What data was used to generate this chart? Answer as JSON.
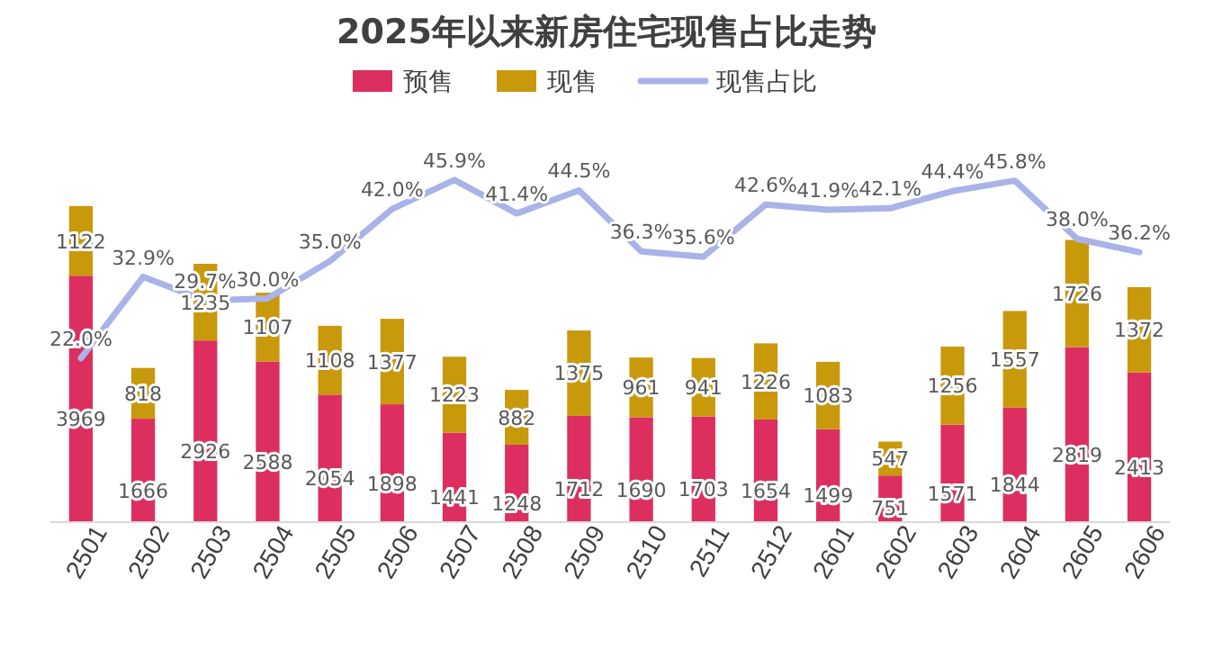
{
  "chart_data": {
    "type": "bar",
    "title": "2025年以来新房住宅现售占比走势",
    "stacked": true,
    "data_labels": true,
    "legend": "top",
    "grid": false,
    "categories": [
      "2501",
      "2502",
      "2503",
      "2504",
      "2505",
      "2506",
      "2507",
      "2508",
      "2509",
      "2510",
      "2511",
      "2512",
      "2601",
      "2602",
      "2603",
      "2604",
      "2605",
      "2606"
    ],
    "series": [
      {
        "name": "预售",
        "color": "#dc2f5f",
        "values": [
          3969,
          1666,
          2926,
          2588,
          2054,
          1898,
          1441,
          1248,
          1712,
          1690,
          1703,
          1654,
          1499,
          751,
          1571,
          1844,
          2819,
          2413
        ]
      },
      {
        "name": "现售",
        "color": "#c9990c",
        "values": [
          1122,
          818,
          1235,
          1107,
          1108,
          1377,
          1223,
          882,
          1375,
          961,
          941,
          1226,
          1083,
          547,
          1256,
          1557,
          1726,
          1372
        ]
      },
      {
        "name": "现售占比",
        "type": "line",
        "axis": "y2",
        "color": "#aab3e8",
        "marker": "none",
        "values": [
          22.0,
          32.9,
          29.7,
          30.0,
          35.0,
          42.0,
          45.9,
          41.4,
          44.5,
          36.3,
          35.6,
          42.6,
          41.9,
          42.1,
          44.4,
          45.8,
          38.0,
          36.2
        ],
        "value_labels": [
          "22.0%",
          "32.9%",
          "29.7%",
          "30.0%",
          "35.0%",
          "42.0%",
          "45.9%",
          "41.4%",
          "44.5%",
          "36.3%",
          "35.6%",
          "42.6%",
          "41.9%",
          "42.1%",
          "44.4%",
          "45.8%",
          "38.0%",
          "36.2%"
        ]
      }
    ]
  }
}
